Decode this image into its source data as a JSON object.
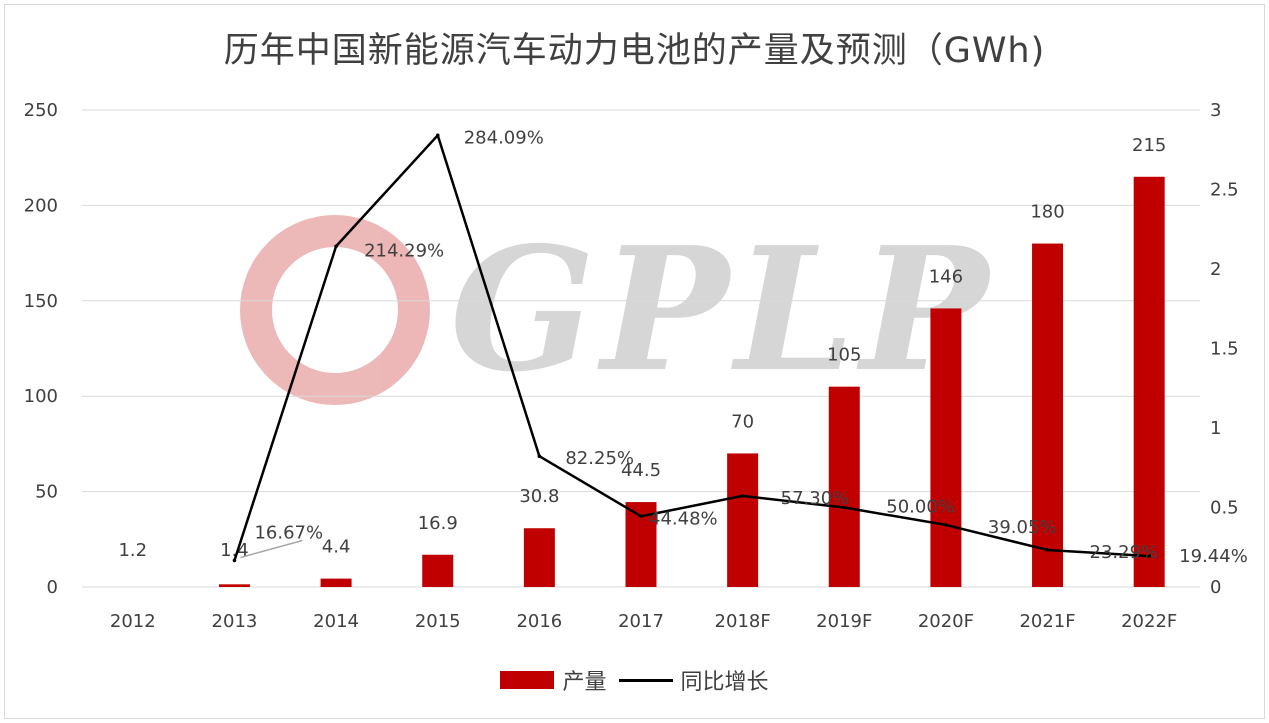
{
  "chart_data": {
    "type": "bar",
    "title": "历年中国新能源汽车动力电池的产量及预测（GWh)",
    "categories": [
      "2012",
      "2013",
      "2014",
      "2015",
      "2016",
      "2017",
      "2018F",
      "2019F",
      "2020F",
      "2021F",
      "2022F"
    ],
    "series": [
      {
        "name": "产量",
        "type": "bar",
        "axis": "left",
        "color": "#c00000",
        "values": [
          null,
          1.4,
          4.4,
          16.9,
          30.8,
          44.5,
          70,
          105,
          146,
          180,
          215
        ],
        "labels": [
          "1.2",
          "1.4",
          "4.4",
          "16.9",
          "30.8",
          "44.5",
          "70",
          "105",
          "146",
          "180",
          "215"
        ]
      },
      {
        "name": "同比增长",
        "type": "line",
        "axis": "right",
        "color": "#000000",
        "values": [
          null,
          0.1667,
          2.1429,
          2.8409,
          0.8225,
          0.4448,
          0.573,
          0.5,
          0.3905,
          0.2329,
          0.1944
        ],
        "labels": [
          "",
          "16.67%",
          "214.29%",
          "284.09%",
          "82.25%",
          "44.48%",
          "57.30%",
          "50.00%",
          "39.05%",
          "23.29%",
          "19.44%"
        ]
      }
    ],
    "y_left": {
      "min": 0,
      "max": 250,
      "ticks": [
        "0",
        "50",
        "100",
        "150",
        "200",
        "250"
      ]
    },
    "y_right": {
      "min": 0,
      "max": 3,
      "ticks": [
        "0",
        "0.5",
        "1",
        "1.5",
        "2",
        "2.5",
        "3"
      ]
    },
    "grid": true,
    "legend": "bottom"
  },
  "legend": {
    "bar_label": "产量",
    "line_label": "同比增长"
  },
  "watermark": {
    "text": "GPLP"
  }
}
